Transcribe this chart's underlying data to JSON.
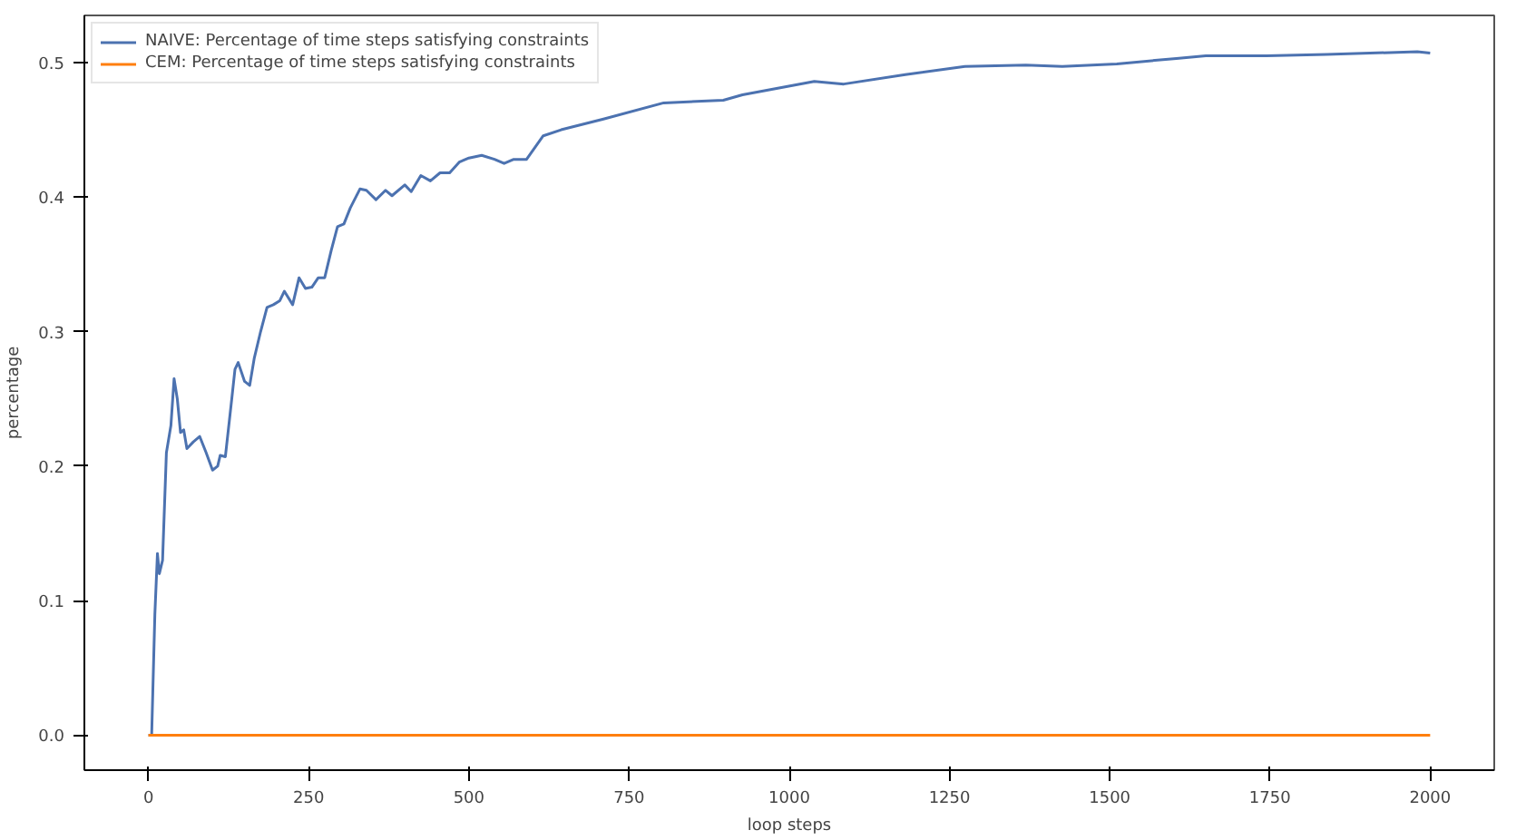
{
  "chart_data": {
    "type": "line",
    "xlabel": "loop steps",
    "ylabel": "percentage",
    "xlim": [
      -100,
      2100
    ],
    "ylim": [
      -0.026,
      0.535
    ],
    "xticks": [
      0,
      250,
      500,
      750,
      1000,
      1250,
      1500,
      1750,
      2000
    ],
    "yticks": [
      {
        "value": 0,
        "label": "0.0"
      },
      0.1,
      0.2,
      0.3,
      0.4,
      0.5
    ],
    "legend": "top left",
    "grid": false,
    "marker": "none",
    "line_style": "solid",
    "series": [
      {
        "name": "NAIVE: Percentage of time steps satisfying constraints",
        "color": "#4c72b0",
        "x": [
          0,
          5,
          10,
          14,
          17,
          22,
          28,
          35,
          40,
          45,
          50,
          55,
          60,
          70,
          80,
          90,
          100,
          108,
          112,
          120,
          130,
          135,
          140,
          150,
          158,
          165,
          175,
          185,
          195,
          205,
          212,
          225,
          235,
          245,
          255,
          265,
          275,
          285,
          295,
          305,
          315,
          330,
          340,
          355,
          370,
          380,
          400,
          410,
          425,
          440,
          455,
          470,
          485,
          500,
          520,
          540,
          555,
          570,
          590,
          616,
          644,
          710,
          804,
          897,
          927,
          1039,
          1085,
          1181,
          1274,
          1369,
          1426,
          1511,
          1604,
          1650,
          1745,
          1838,
          1980,
          2000
        ],
        "values": [
          0,
          0,
          0.09,
          0.135,
          0.12,
          0.13,
          0.21,
          0.23,
          0.265,
          0.25,
          0.225,
          0.227,
          0.213,
          0.218,
          0.222,
          0.21,
          0.197,
          0.2,
          0.208,
          0.207,
          0.25,
          0.272,
          0.277,
          0.263,
          0.26,
          0.28,
          0.3,
          0.318,
          0.32,
          0.323,
          0.33,
          0.32,
          0.34,
          0.332,
          0.333,
          0.34,
          0.34,
          0.36,
          0.378,
          0.38,
          0.392,
          0.406,
          0.405,
          0.398,
          0.405,
          0.401,
          0.409,
          0.404,
          0.416,
          0.412,
          0.418,
          0.418,
          0.426,
          0.429,
          0.431,
          0.428,
          0.425,
          0.428,
          0.428,
          0.4455,
          0.45,
          0.458,
          0.47,
          0.472,
          0.476,
          0.486,
          0.484,
          0.491,
          0.497,
          0.498,
          0.497,
          0.499,
          0.503,
          0.505,
          0.505,
          0.506,
          0.508,
          0.507
        ]
      },
      {
        "name": "CEM: Percentage of time steps satisfying constraints",
        "color": "#ff7f0e",
        "x": [
          0,
          2000
        ],
        "values": [
          0,
          0
        ]
      }
    ]
  }
}
